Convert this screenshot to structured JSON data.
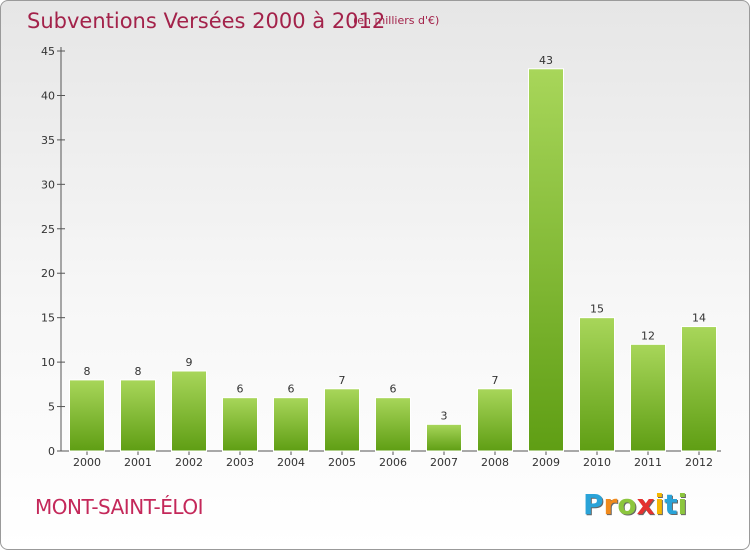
{
  "title": "Subventions Versées 2000 à 2012",
  "subtitle": "(en milliers d'€)",
  "commune": "MONT-SAINT-ÉLOI",
  "logo": {
    "letters": [
      "P",
      "r",
      "o",
      "x",
      "i",
      "t",
      "i"
    ],
    "colors": [
      "#2aa3d8",
      "#f08a1c",
      "#8cc63e",
      "#e4312f",
      "#f5b700",
      "#2aa3d8",
      "#8cc63e"
    ]
  },
  "colors": {
    "bar_top": "#a8d65a",
    "bar_bottom": "#5f9e14",
    "axis": "#555555"
  },
  "chart_data": {
    "type": "bar",
    "categories": [
      "2000",
      "2001",
      "2002",
      "2003",
      "2004",
      "2005",
      "2006",
      "2007",
      "2008",
      "2009",
      "2010",
      "2011",
      "2012"
    ],
    "values": [
      8,
      8,
      9,
      6,
      6,
      7,
      6,
      3,
      7,
      43,
      15,
      12,
      14
    ],
    "yticks": [
      0,
      5,
      10,
      15,
      20,
      25,
      30,
      35,
      40,
      45
    ],
    "ylim": [
      0,
      45
    ],
    "grid": false,
    "title": "Subventions Versées 2000 à 2012",
    "xlabel": "",
    "ylabel": ""
  }
}
